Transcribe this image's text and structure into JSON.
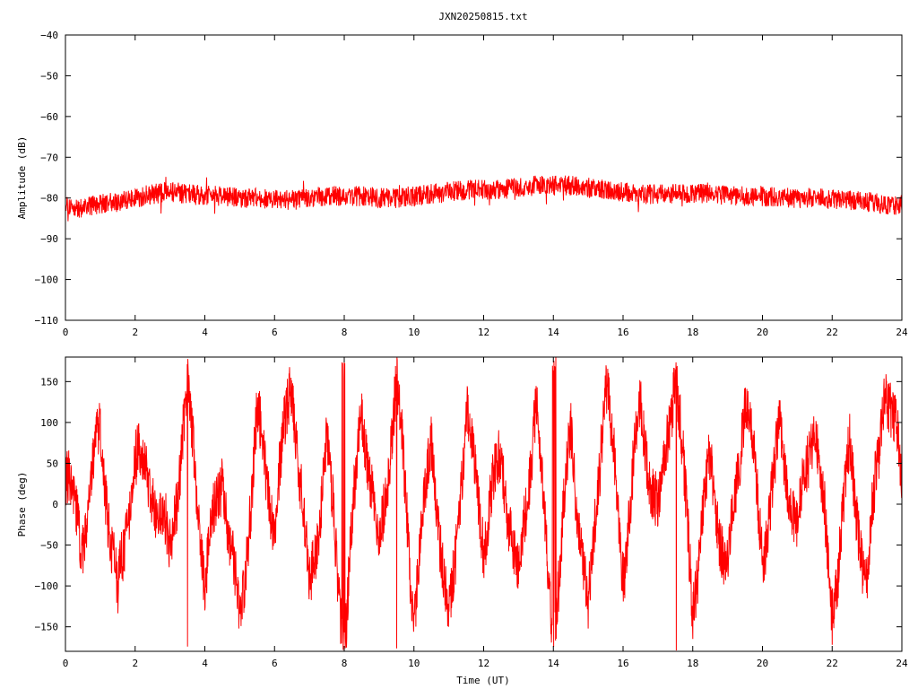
{
  "chart_data": [
    {
      "type": "line",
      "title": "JXN20250815.txt",
      "xlabel": "",
      "ylabel": "Amplitude (dB)",
      "xlim": [
        0,
        24
      ],
      "ylim": [
        -110,
        -40
      ],
      "xticks": [
        "0",
        "2",
        "4",
        "6",
        "8",
        "10",
        "12",
        "14",
        "16",
        "18",
        "20",
        "22",
        "24"
      ],
      "yticks": [
        "-40",
        "-50",
        "-60",
        "-70",
        "-80",
        "-90",
        "-100",
        "-110"
      ],
      "grid": false,
      "legend": "none",
      "series": [
        {
          "color": "#ff0000",
          "style": "noisy-band",
          "noise_half_width": 2.5,
          "x": [
            0,
            0.5,
            1,
            1.5,
            2,
            2.5,
            3,
            3.5,
            4,
            4.5,
            5,
            5.5,
            6,
            6.5,
            7,
            7.5,
            8,
            8.5,
            9,
            9.5,
            10,
            10.5,
            11,
            11.5,
            12,
            12.5,
            13,
            13.5,
            14,
            14.5,
            15,
            15.5,
            16,
            16.5,
            17,
            17.5,
            18,
            18.5,
            19,
            19.5,
            20,
            20.5,
            21,
            21.5,
            22,
            22.5,
            23,
            23.5,
            24
          ],
          "y": [
            -82,
            -82.5,
            -81.5,
            -81,
            -80,
            -79,
            -78.5,
            -79,
            -79.5,
            -79.5,
            -80,
            -80,
            -80.5,
            -80.5,
            -80,
            -79.5,
            -79.5,
            -79.5,
            -80,
            -80,
            -79.5,
            -79,
            -78.5,
            -78,
            -78,
            -78,
            -77.5,
            -77,
            -77,
            -77,
            -77.5,
            -78,
            -78.5,
            -79,
            -79,
            -79,
            -79,
            -79,
            -79.5,
            -79.5,
            -79.5,
            -80,
            -80,
            -80,
            -80.5,
            -80.5,
            -81,
            -81.5,
            -82
          ]
        }
      ]
    },
    {
      "type": "line",
      "title": "",
      "xlabel": "Time (UT)",
      "ylabel": "Phase (deg)",
      "xlim": [
        0,
        24
      ],
      "ylim": [
        -180,
        180
      ],
      "xticks": [
        "0",
        "2",
        "4",
        "6",
        "8",
        "10",
        "12",
        "14",
        "16",
        "18",
        "20",
        "22",
        "24"
      ],
      "yticks": [
        "150",
        "100",
        "50",
        "0",
        "-50",
        "-100",
        "-150"
      ],
      "ytick_values": [
        150,
        100,
        50,
        0,
        -50,
        -100,
        -150
      ],
      "grid": false,
      "legend": "none",
      "series": [
        {
          "color": "#ff0000",
          "style": "wrapped-phase",
          "x": [
            0,
            0.5,
            1,
            1.5,
            2,
            2.5,
            3,
            3.5,
            4,
            4.5,
            5,
            5.5,
            6,
            6.5,
            7,
            7.5,
            8,
            8.5,
            9,
            9.5,
            10,
            10.5,
            11,
            11.5,
            12,
            12.5,
            13,
            13.5,
            14,
            14.5,
            15,
            15.5,
            16,
            16.5,
            17,
            17.5,
            18,
            18.5,
            19,
            19.5,
            20,
            20.5,
            21,
            21.5,
            22,
            22.5,
            23,
            23.5,
            24
          ],
          "y": [
            30,
            -40,
            90,
            -120,
            60,
            20,
            -60,
            140,
            -90,
            40,
            -150,
            100,
            -20,
            160,
            -110,
            70,
            -170,
            120,
            -60,
            150,
            -130,
            80,
            -160,
            110,
            -40,
            60,
            -100,
            130,
            -170,
            90,
            -140,
            160,
            -80,
            120,
            -20,
            170,
            -120,
            50,
            -90,
            140,
            -60,
            80,
            -30,
            110,
            -130,
            60,
            -100,
            150,
            40
          ]
        }
      ]
    }
  ]
}
